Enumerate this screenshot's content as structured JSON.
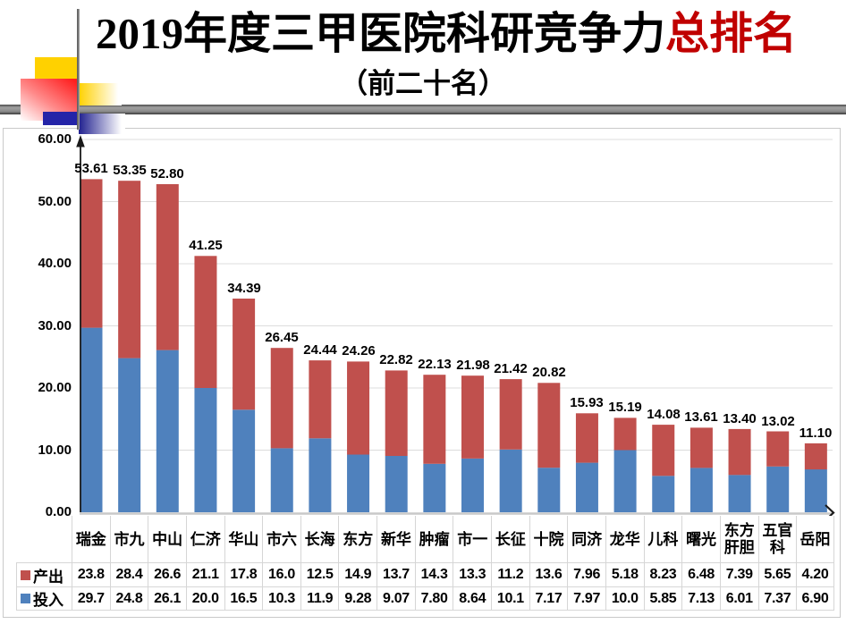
{
  "title": {
    "main": "2019年度三甲医院科研竞争力",
    "highlight": "总排名",
    "highlight_color": "#C00000",
    "subtitle": "（前二十名）"
  },
  "chart_data": {
    "type": "bar",
    "stacked": true,
    "title": "2019年度三甲医院科研竞争力总排名（前二十名）",
    "categories": [
      "瑞金",
      "市九",
      "中山",
      "仁济",
      "华山",
      "市六",
      "长海",
      "东方",
      "新华",
      "肿瘤",
      "市一",
      "长征",
      "十院",
      "同济",
      "龙华",
      "儿科",
      "曙光",
      "东方肝胆",
      "五官科",
      "岳阳"
    ],
    "totals": [
      "53.61",
      "53.35",
      "52.80",
      "41.25",
      "34.39",
      "26.45",
      "24.44",
      "24.26",
      "22.82",
      "22.13",
      "21.98",
      "21.42",
      "20.82",
      "15.93",
      "15.19",
      "14.08",
      "13.61",
      "13.40",
      "13.02",
      "11.10"
    ],
    "series": [
      {
        "name": "产出",
        "position": "top",
        "color": "#C0504D",
        "values": [
          "23.8",
          "28.4",
          "26.6",
          "21.1",
          "17.8",
          "16.0",
          "12.5",
          "14.9",
          "13.7",
          "14.3",
          "13.3",
          "11.2",
          "13.6",
          "7.96",
          "5.18",
          "8.23",
          "6.48",
          "7.39",
          "5.65",
          "4.20"
        ]
      },
      {
        "name": "投入",
        "position": "bottom",
        "color": "#4F81BD",
        "values": [
          "29.7",
          "24.8",
          "26.1",
          "20.0",
          "16.5",
          "10.3",
          "11.9",
          "9.28",
          "9.07",
          "7.80",
          "8.64",
          "10.1",
          "7.17",
          "7.97",
          "10.0",
          "5.85",
          "7.13",
          "6.01",
          "7.37",
          "6.90"
        ]
      }
    ],
    "y_ticks": [
      "60.00",
      "50.00",
      "40.00",
      "30.00",
      "20.00",
      "10.00",
      "0.00"
    ],
    "ylim": [
      0,
      60
    ],
    "grid": true,
    "gridline_color": "#DCDCDC",
    "axis_color": "#1a1a1a",
    "category_axis_color": "#C9C9C9",
    "legend_position": "table-left",
    "legend": [
      "产出",
      "投入"
    ]
  }
}
